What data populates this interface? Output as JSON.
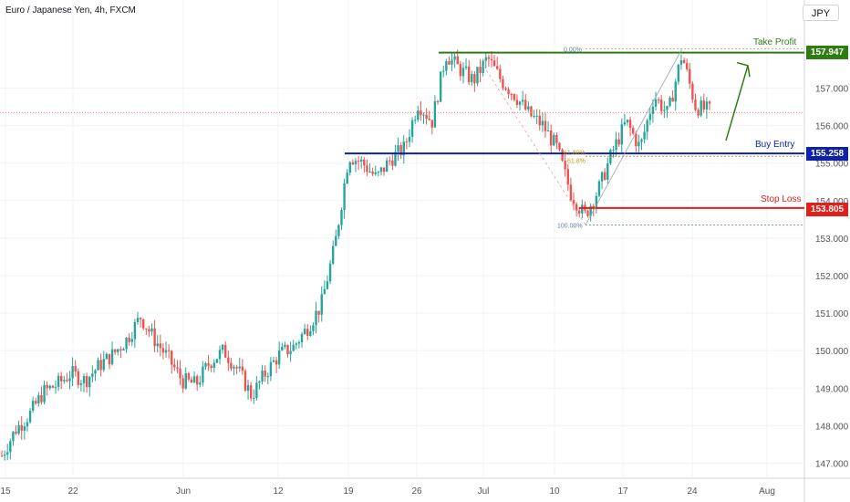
{
  "header": {
    "symbol": "Euro / Japanese Yen, 4h, FXCM"
  },
  "currency_button": "JPY",
  "annotations": {
    "take_profit": {
      "label": "Take Profit",
      "price": "157.947",
      "color": "#2e7d12"
    },
    "buy_entry": {
      "label": "Buy Entry",
      "price": "155.258",
      "color": "#0d22a8"
    },
    "stop_loss": {
      "label": "Stop Loss",
      "price": "153.805",
      "color": "#e0201b"
    },
    "fib": {
      "top": "0.00%",
      "mid1": "61.80%",
      "mid2": "61.8%",
      "bottom": "100.00%"
    }
  },
  "colors": {
    "up": "#26a69a",
    "down": "#ef5350",
    "grid": "#f0f3fa",
    "axis_text": "#555555",
    "current_price_line": "#ef5350"
  },
  "chart_data": {
    "type": "candlestick",
    "title": "Euro / Japanese Yen, 4h, FXCM",
    "y_axis": {
      "ticks": [
        "147.000",
        "148.000",
        "149.000",
        "150.000",
        "151.000",
        "152.000",
        "153.000",
        "154.000",
        "155.000",
        "156.000",
        "157.000"
      ],
      "range": [
        146.5,
        158.8
      ]
    },
    "x_axis": {
      "ticks": [
        "15",
        "22",
        "Jun",
        "12",
        "19",
        "26",
        "Jul",
        "10",
        "17",
        "24",
        "Aug"
      ]
    },
    "levels": {
      "take_profit": 157.947,
      "buy_entry": 155.258,
      "stop_loss": 153.805
    },
    "path": [
      [
        "May 15",
        147.2
      ],
      [
        "May 16",
        147.9
      ],
      [
        "May 17",
        148.3
      ],
      [
        "May 18",
        148.9
      ],
      [
        "May 19",
        149.1
      ],
      [
        "May 22",
        149.4
      ],
      [
        "May 23",
        149.2
      ],
      [
        "May 24",
        149.6
      ],
      [
        "May 25",
        149.9
      ],
      [
        "May 26",
        150.3
      ],
      [
        "May 29",
        150.9
      ],
      [
        "May 30",
        150.3
      ],
      [
        "May 31",
        149.8
      ],
      [
        "Jun 1",
        149.2
      ],
      [
        "Jun 2",
        149.1
      ],
      [
        "Jun 5",
        149.7
      ],
      [
        "Jun 6",
        150.0
      ],
      [
        "Jun 7",
        149.5
      ],
      [
        "Jun 8",
        148.8
      ],
      [
        "Jun 9",
        149.4
      ],
      [
        "Jun 12",
        149.9
      ],
      [
        "Jun 13",
        150.1
      ],
      [
        "Jun 14",
        150.6
      ],
      [
        "Jun 15",
        151.2
      ],
      [
        "Jun 16",
        152.8
      ],
      [
        "Jun 19",
        155.2
      ],
      [
        "Jun 20",
        155.0
      ],
      [
        "Jun 21",
        154.6
      ],
      [
        "Jun 22",
        155.1
      ],
      [
        "Jun 23",
        155.4
      ],
      [
        "Jun 26",
        156.6
      ],
      [
        "Jun 27",
        156.1
      ],
      [
        "Jun 28",
        157.9
      ],
      [
        "Jun 29",
        157.5
      ],
      [
        "Jun 30",
        157.2
      ],
      [
        "Jul 3",
        157.8
      ],
      [
        "Jul 4",
        157.2
      ],
      [
        "Jul 5",
        156.8
      ],
      [
        "Jul 6",
        156.3
      ],
      [
        "Jul 7",
        156.0
      ],
      [
        "Jul 10",
        155.4
      ],
      [
        "Jul 11",
        154.2
      ],
      [
        "Jul 12",
        153.6
      ],
      [
        "Jul 13",
        154.3
      ],
      [
        "Jul 14",
        155.3
      ],
      [
        "Jul 17",
        156.1
      ],
      [
        "Jul 18",
        155.4
      ],
      [
        "Jul 19",
        156.8
      ],
      [
        "Jul 20",
        156.3
      ],
      [
        "Jul 21",
        157.9
      ],
      [
        "Jul 24",
        156.5
      ],
      [
        "Jul 25",
        156.4
      ]
    ]
  }
}
